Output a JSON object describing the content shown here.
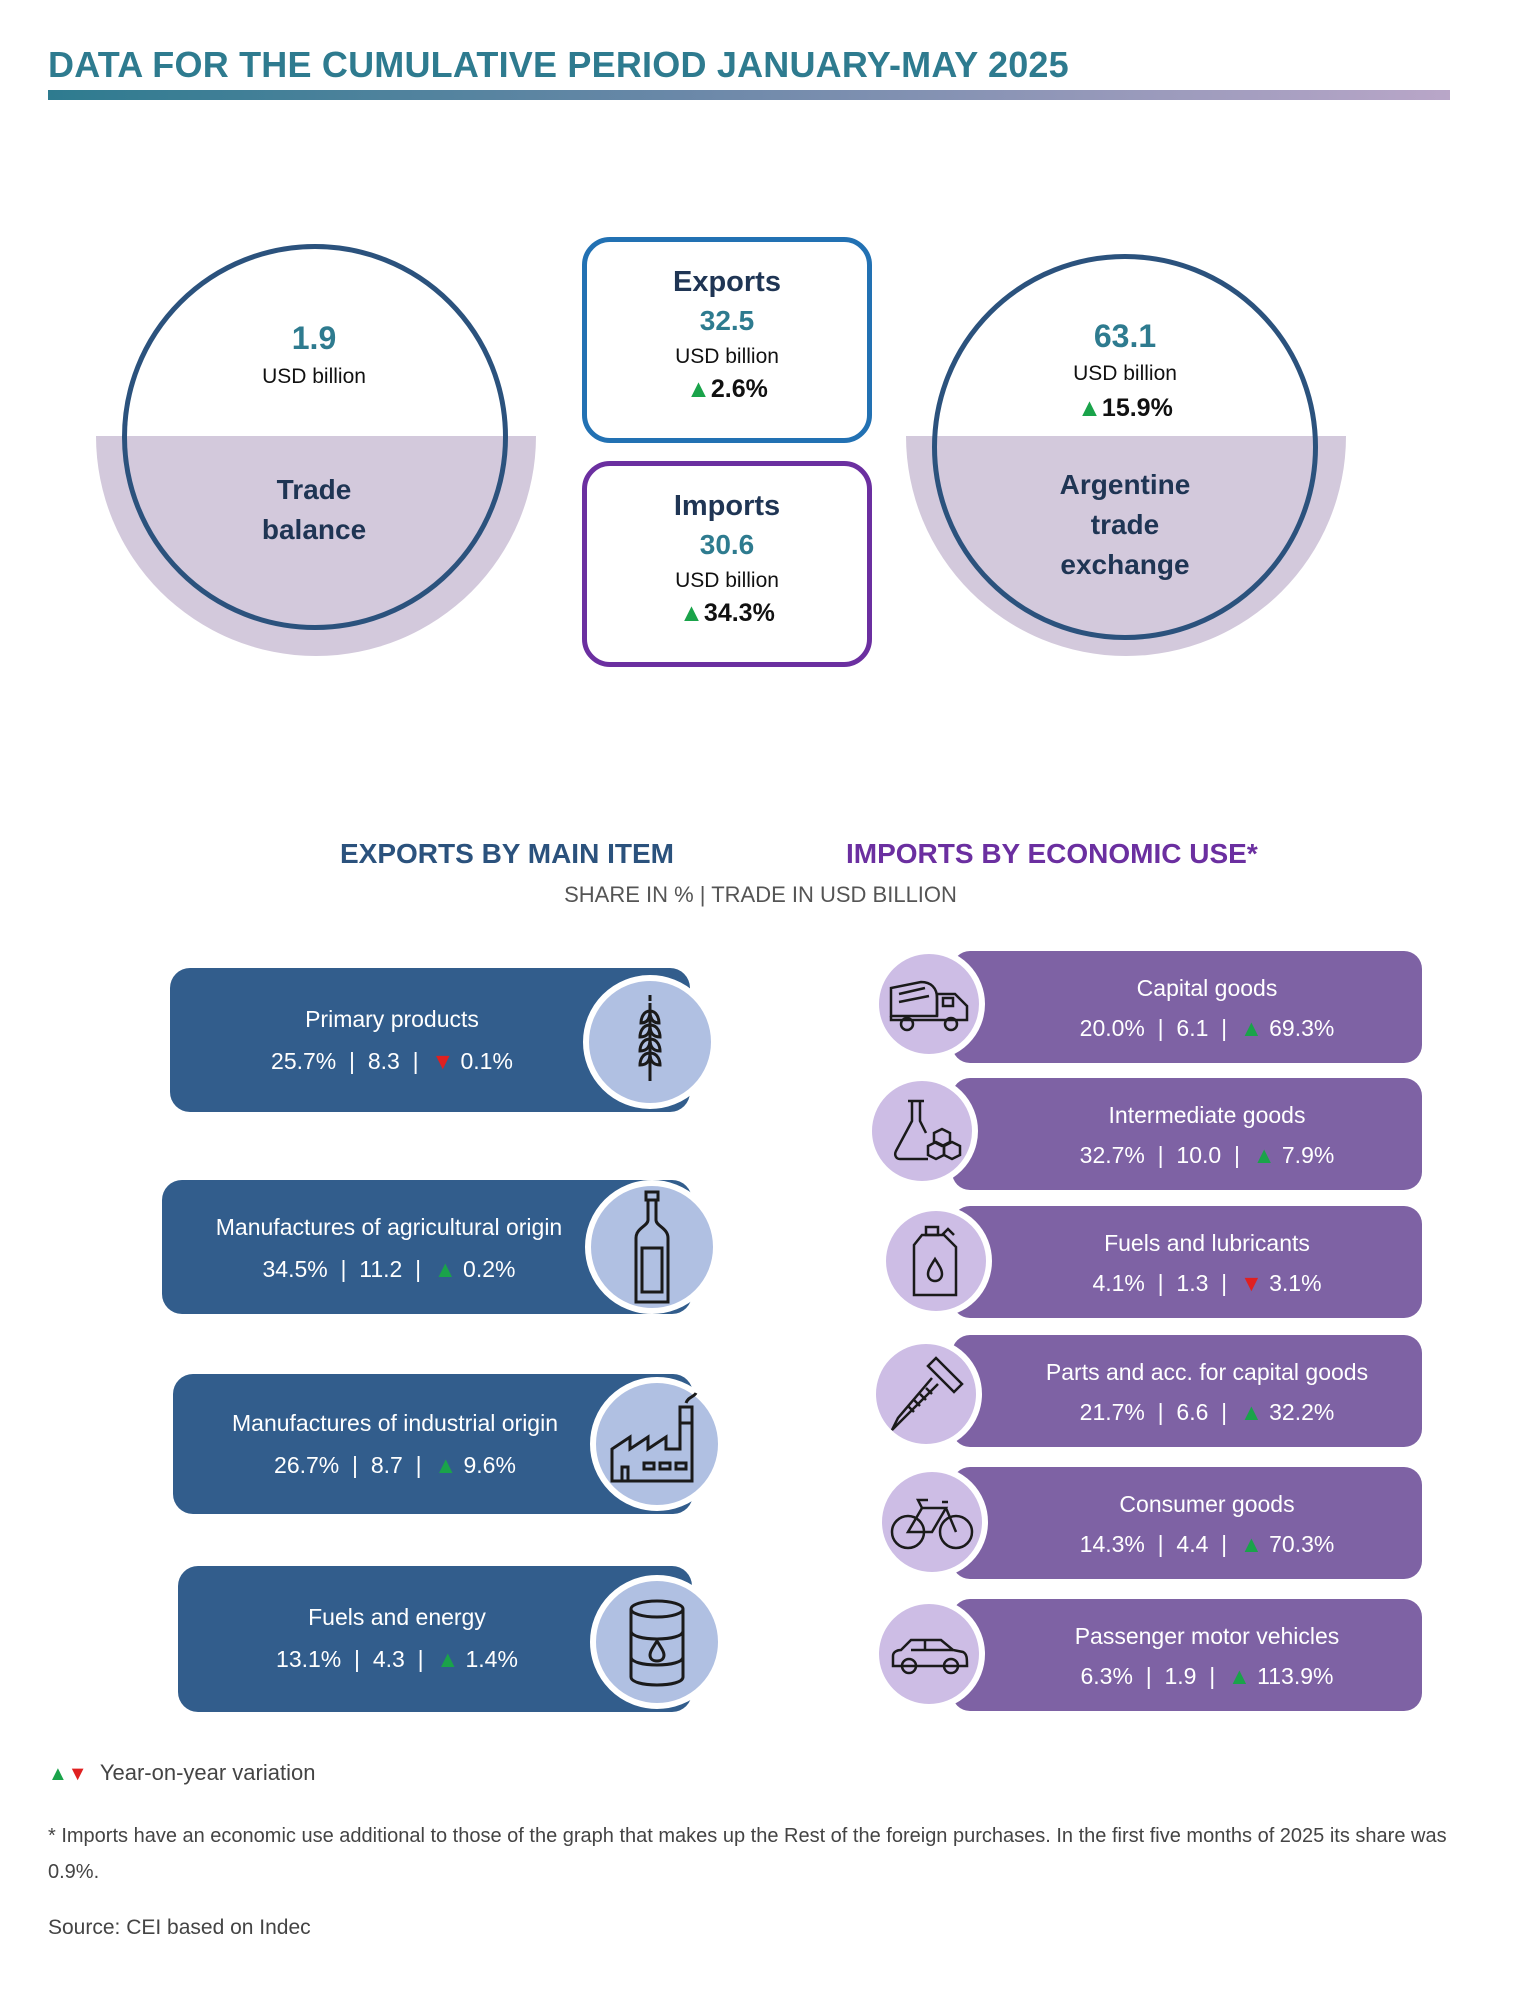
{
  "header": {
    "title": "DATA FOR THE CUMULATIVE PERIOD JANUARY-MAY 2025"
  },
  "summary": {
    "trade_balance": {
      "value": "1.9",
      "unit": "USD billion",
      "label_line1": "Trade",
      "label_line2": "balance"
    },
    "exports": {
      "label": "Exports",
      "value": "32.5",
      "unit": "USD billion",
      "variation": "2.6%",
      "direction": "up"
    },
    "imports": {
      "label": "Imports",
      "value": "30.6",
      "unit": "USD billion",
      "variation": "34.3%",
      "direction": "up"
    },
    "trade_exchange": {
      "value": "63.1",
      "unit": "USD billion",
      "variation": "15.9%",
      "direction": "up",
      "label_line1": "Argentine",
      "label_line2": "trade",
      "label_line3": "exchange"
    }
  },
  "sections": {
    "exports_title": "EXPORTS BY MAIN ITEM",
    "imports_title": "IMPORTS BY ECONOMIC USE*",
    "subtitle": "SHARE IN % | TRADE IN USD BILLION"
  },
  "arrows": {
    "up": "▲",
    "down": "▼"
  },
  "exports_items": [
    {
      "label": "Primary products",
      "share": "25.7%",
      "value": "8.3",
      "variation": "0.1%",
      "direction": "down",
      "icon": "wheat-icon"
    },
    {
      "label": "Manufactures of agricultural origin",
      "share": "34.5%",
      "value": "11.2",
      "variation": "0.2%",
      "direction": "up",
      "icon": "bottle-icon"
    },
    {
      "label": "Manufactures of industrial origin",
      "share": "26.7%",
      "value": "8.7",
      "variation": "9.6%",
      "direction": "up",
      "icon": "factory-icon"
    },
    {
      "label": "Fuels and energy",
      "share": "13.1%",
      "value": "4.3",
      "variation": "1.4%",
      "direction": "up",
      "icon": "oil-barrel-icon"
    }
  ],
  "imports_items": [
    {
      "label": "Capital goods",
      "share": "20.0%",
      "value": "6.1",
      "variation": "69.3%",
      "direction": "up",
      "icon": "concrete-mixer-truck-icon"
    },
    {
      "label": "Intermediate goods",
      "share": "32.7%",
      "value": "10.0",
      "variation": "7.9%",
      "direction": "up",
      "icon": "chemistry-flask-icon"
    },
    {
      "label": "Fuels and lubricants",
      "share": "4.1%",
      "value": "1.3",
      "variation": "3.1%",
      "direction": "down",
      "icon": "oil-canister-icon"
    },
    {
      "label": "Parts and acc. for capital goods",
      "share": "21.7%",
      "value": "6.6",
      "variation": "32.2%",
      "direction": "up",
      "icon": "screw-icon"
    },
    {
      "label": "Consumer goods",
      "share": "14.3%",
      "value": "4.4",
      "variation": "70.3%",
      "direction": "up",
      "icon": "bicycle-icon"
    },
    {
      "label": "Passenger motor vehicles",
      "share": "6.3%",
      "value": "1.9",
      "variation": "113.9%",
      "direction": "up",
      "icon": "car-icon"
    }
  ],
  "legend": {
    "text": "Year-on-year variation"
  },
  "footnote": "* Imports have an economic use additional to those of the graph that makes up the Rest of the foreign purchases. In the first five months of 2025 its share was 0.9%.",
  "source": "Source: CEI based on Indec",
  "colors": {
    "teal": "#2e7b8f",
    "navy": "#2b527d",
    "export_pill": "#325d8c",
    "import_pill": "#7e62a4",
    "up": "#1aa34a",
    "down": "#e02020"
  }
}
